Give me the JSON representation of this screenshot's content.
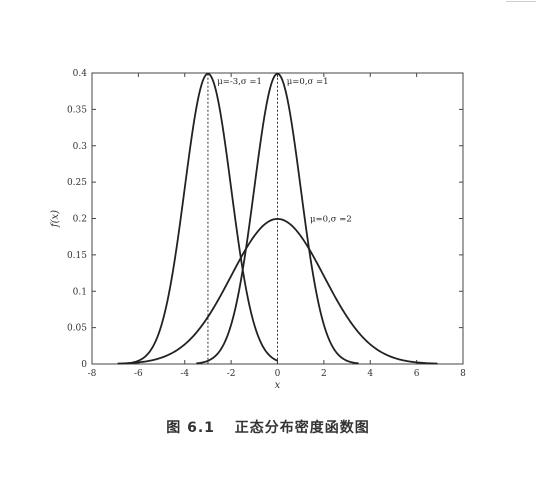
{
  "chart_data": {
    "type": "line",
    "xlabel": "x",
    "ylabel": "f(x)",
    "xlim": [
      -8,
      8
    ],
    "ylim": [
      0,
      0.4
    ],
    "xticks": [
      -8,
      -6,
      -4,
      -2,
      0,
      2,
      4,
      6,
      8
    ],
    "yticks": [
      0,
      0.05,
      0.1,
      0.15,
      0.2,
      0.25,
      0.3,
      0.35,
      0.4
    ],
    "xtick_labels": [
      "-8",
      "-6",
      "-4",
      "-2",
      "0",
      "2",
      "4",
      "6",
      "8"
    ],
    "ytick_labels": [
      "0",
      "0.05",
      "0.1",
      "0.15",
      "0.2",
      "0.25",
      "0.3",
      "0.35",
      "0.4"
    ],
    "grid": false,
    "series": [
      {
        "name": "μ=-3,σ=1",
        "mu": -3,
        "sigma": 1,
        "x_range": [
          -6.5,
          0
        ]
      },
      {
        "name": "μ=0,σ=1",
        "mu": 0,
        "sigma": 1,
        "x_range": [
          -3.5,
          3.5
        ]
      },
      {
        "name": "μ=0,σ=2",
        "mu": 0,
        "sigma": 2,
        "x_range": [
          -6.9,
          6.9
        ]
      }
    ],
    "mean_lines_x": [
      -3,
      0
    ],
    "annotations": [
      {
        "text": "μ=-3,σ =1",
        "x": -2.6,
        "y": 0.385
      },
      {
        "text": "μ=0,σ =1",
        "x": 0.4,
        "y": 0.385
      },
      {
        "text": "μ=0,σ =2",
        "x": 1.4,
        "y": 0.196
      }
    ]
  },
  "caption": {
    "figure_number": "图 6.1",
    "title": "正态分布密度函数图"
  }
}
